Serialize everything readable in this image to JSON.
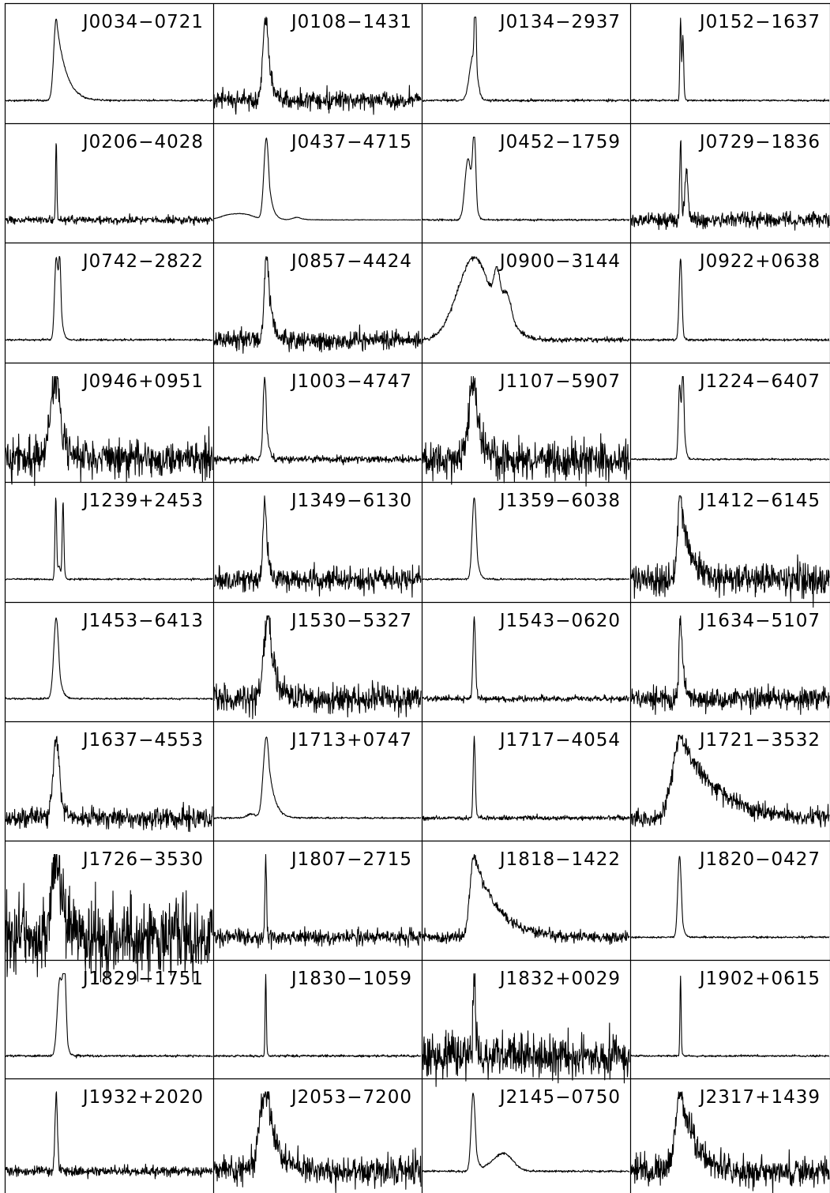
{
  "chart_data": {
    "type": "line",
    "grid": {
      "rows": 10,
      "cols": 4
    },
    "line_color": "#000000",
    "panels": [
      {
        "name": "J0034−0721",
        "profile": {
          "noise": 0.012,
          "comps": [
            [
              0.245,
              0.012,
              0.048,
              1.0
            ]
          ]
        }
      },
      {
        "name": "J0108−1431",
        "profile": {
          "noise": 0.12,
          "comps": [
            [
              0.25,
              0.014,
              0.022,
              1.0
            ]
          ]
        }
      },
      {
        "name": "J0134−2937",
        "profile": {
          "noise": 0.015,
          "comps": [
            [
              0.245,
              0.018,
              0.0,
              0.55
            ],
            [
              0.255,
              0.004,
              0.003,
              1.0
            ]
          ]
        }
      },
      {
        "name": "J0152−1637",
        "profile": {
          "noise": 0.012,
          "comps": [
            [
              0.25,
              0.0035,
              0.004,
              1.0
            ],
            [
              0.262,
              0.004,
              0.004,
              0.75
            ]
          ]
        }
      },
      {
        "name": "J0206−4028",
        "profile": {
          "noise": 0.05,
          "comps": [
            [
              0.245,
              0.003,
              0.002,
              1.0
            ]
          ]
        }
      },
      {
        "name": "J0437−4715",
        "profile": {
          "noise": 0.004,
          "comps": [
            [
              0.253,
              0.012,
              0.018,
              1.0
            ],
            [
              0.14,
              0.05,
              0.05,
              0.07
            ],
            [
              0.06,
              0.04,
              0.04,
              0.04
            ],
            [
              0.4,
              0.02,
              0.03,
              0.03
            ]
          ]
        }
      },
      {
        "name": "J0452−1759",
        "profile": {
          "noise": 0.012,
          "comps": [
            [
              0.22,
              0.015,
              0.012,
              0.75
            ],
            [
              0.25,
              0.008,
              0.008,
              1.0
            ]
          ]
        }
      },
      {
        "name": "J0729−1836",
        "profile": {
          "noise": 0.1,
          "comps": [
            [
              0.25,
              0.004,
              0.004,
              1.0
            ],
            [
              0.28,
              0.008,
              0.008,
              0.6
            ]
          ]
        }
      },
      {
        "name": "J0742−2822",
        "profile": {
          "noise": 0.012,
          "comps": [
            [
              0.245,
              0.008,
              0.012,
              1.0
            ],
            [
              0.262,
              0.006,
              0.008,
              0.8
            ]
          ]
        }
      },
      {
        "name": "J0857−4424",
        "profile": {
          "noise": 0.13,
          "comps": [
            [
              0.255,
              0.012,
              0.022,
              1.0
            ]
          ]
        }
      },
      {
        "name": "J0900−3144",
        "profile": {
          "noise": 0.03,
          "comps": [
            [
              0.25,
              0.08,
              0.012,
              1.0
            ],
            [
              0.36,
              0.015,
              0.018,
              0.45
            ],
            [
              0.41,
              0.025,
              0.04,
              0.4
            ]
          ]
        }
      },
      {
        "name": "J0922+0638",
        "profile": {
          "noise": 0.015,
          "comps": [
            [
              0.25,
              0.007,
              0.006,
              1.0
            ]
          ]
        }
      },
      {
        "name": "J0946+0951",
        "profile": {
          "noise": 0.25,
          "comps": [
            [
              0.24,
              0.025,
              0.03,
              1.0
            ]
          ]
        }
      },
      {
        "name": "J1003−4747",
        "profile": {
          "noise": 0.045,
          "comps": [
            [
              0.245,
              0.008,
              0.012,
              1.0
            ]
          ]
        }
      },
      {
        "name": "J1107−5907",
        "profile": {
          "noise": 0.25,
          "comps": [
            [
              0.245,
              0.02,
              0.03,
              1.0
            ]
          ]
        }
      },
      {
        "name": "J1224−6407",
        "profile": {
          "noise": 0.012,
          "comps": [
            [
              0.245,
              0.006,
              0.008,
              0.9
            ],
            [
              0.262,
              0.006,
              0.008,
              1.0
            ]
          ]
        }
      },
      {
        "name": "J1239+2453",
        "profile": {
          "noise": 0.012,
          "comps": [
            [
              0.243,
              0.004,
              0.004,
              1.0
            ],
            [
              0.278,
              0.004,
              0.004,
              0.95
            ],
            [
              0.26,
              0.006,
              0.006,
              0.15
            ]
          ]
        }
      },
      {
        "name": "J1349−6130",
        "profile": {
          "noise": 0.15,
          "comps": [
            [
              0.245,
              0.008,
              0.014,
              1.0
            ]
          ]
        }
      },
      {
        "name": "J1359−6038",
        "profile": {
          "noise": 0.012,
          "comps": [
            [
              0.25,
              0.01,
              0.012,
              1.0
            ]
          ]
        }
      },
      {
        "name": "J1412−6145",
        "profile": {
          "noise": 0.2,
          "comps": [
            [
              0.25,
              0.015,
              0.05,
              1.0
            ]
          ]
        }
      },
      {
        "name": "J1453−6413",
        "profile": {
          "noise": 0.012,
          "comps": [
            [
              0.245,
              0.012,
              0.015,
              1.0
            ]
          ]
        }
      },
      {
        "name": "J1530−5327",
        "profile": {
          "noise": 0.2,
          "comps": [
            [
              0.26,
              0.018,
              0.035,
              1.0
            ]
          ]
        }
      },
      {
        "name": "J1543−0620",
        "profile": {
          "noise": 0.04,
          "comps": [
            [
              0.25,
              0.006,
              0.006,
              1.0
            ]
          ]
        }
      },
      {
        "name": "J1634−5107",
        "profile": {
          "noise": 0.15,
          "comps": [
            [
              0.25,
              0.008,
              0.015,
              1.0
            ]
          ]
        }
      },
      {
        "name": "J1637−4553",
        "profile": {
          "noise": 0.14,
          "comps": [
            [
              0.245,
              0.015,
              0.02,
              1.0
            ]
          ]
        }
      },
      {
        "name": "J1713+0747",
        "profile": {
          "noise": 0.012,
          "comps": [
            [
              0.253,
              0.015,
              0.03,
              1.0
            ],
            [
              0.18,
              0.02,
              0.02,
              0.05
            ]
          ]
        }
      },
      {
        "name": "J1717−4054",
        "profile": {
          "noise": 0.03,
          "comps": [
            [
              0.25,
              0.005,
              0.005,
              1.0
            ]
          ]
        }
      },
      {
        "name": "J1721−3532",
        "profile": {
          "noise": 0.12,
          "comps": [
            [
              0.25,
              0.04,
              0.18,
              1.0
            ]
          ]
        }
      },
      {
        "name": "J1726−3530",
        "profile": {
          "noise": 0.5,
          "comps": [
            [
              0.245,
              0.02,
              0.03,
              1.0
            ]
          ]
        }
      },
      {
        "name": "J1807−2715",
        "profile": {
          "noise": 0.1,
          "comps": [
            [
              0.25,
              0.004,
              0.004,
              1.0
            ]
          ]
        }
      },
      {
        "name": "J1818−1422",
        "profile": {
          "noise": 0.07,
          "comps": [
            [
              0.25,
              0.02,
              0.12,
              1.0
            ]
          ]
        }
      },
      {
        "name": "J1820−0427",
        "profile": {
          "noise": 0.012,
          "comps": [
            [
              0.245,
              0.009,
              0.01,
              1.0
            ]
          ]
        }
      },
      {
        "name": "J1829−1751",
        "profile": {
          "noise": 0.015,
          "comps": [
            [
              0.262,
              0.012,
              0.012,
              0.95
            ],
            [
              0.285,
              0.008,
              0.008,
              1.0
            ]
          ]
        }
      },
      {
        "name": "J1830−1059",
        "profile": {
          "noise": 0.015,
          "comps": [
            [
              0.25,
              0.003,
              0.003,
              1.0
            ]
          ]
        }
      },
      {
        "name": "J1832+0029",
        "profile": {
          "noise": 0.28,
          "comps": [
            [
              0.25,
              0.006,
              0.008,
              1.0
            ]
          ]
        }
      },
      {
        "name": "J1902+0615",
        "profile": {
          "noise": 0.012,
          "comps": [
            [
              0.25,
              0.003,
              0.003,
              1.0
            ]
          ]
        }
      },
      {
        "name": "J1932+2020",
        "profile": {
          "noise": 0.07,
          "comps": [
            [
              0.245,
              0.006,
              0.006,
              1.0
            ]
          ]
        }
      },
      {
        "name": "J2053−7200",
        "profile": {
          "noise": 0.2,
          "comps": [
            [
              0.25,
              0.03,
              0.05,
              1.0
            ]
          ]
        }
      },
      {
        "name": "J2145−0750",
        "profile": {
          "noise": 0.015,
          "comps": [
            [
              0.245,
              0.01,
              0.012,
              1.0
            ],
            [
              0.4,
              0.04,
              0.02,
              0.2
            ],
            [
              0.34,
              0.04,
              0.04,
              0.08
            ]
          ]
        }
      },
      {
        "name": "J2317+1439",
        "profile": {
          "noise": 0.2,
          "comps": [
            [
              0.25,
              0.025,
              0.07,
              1.0
            ]
          ]
        }
      }
    ]
  }
}
